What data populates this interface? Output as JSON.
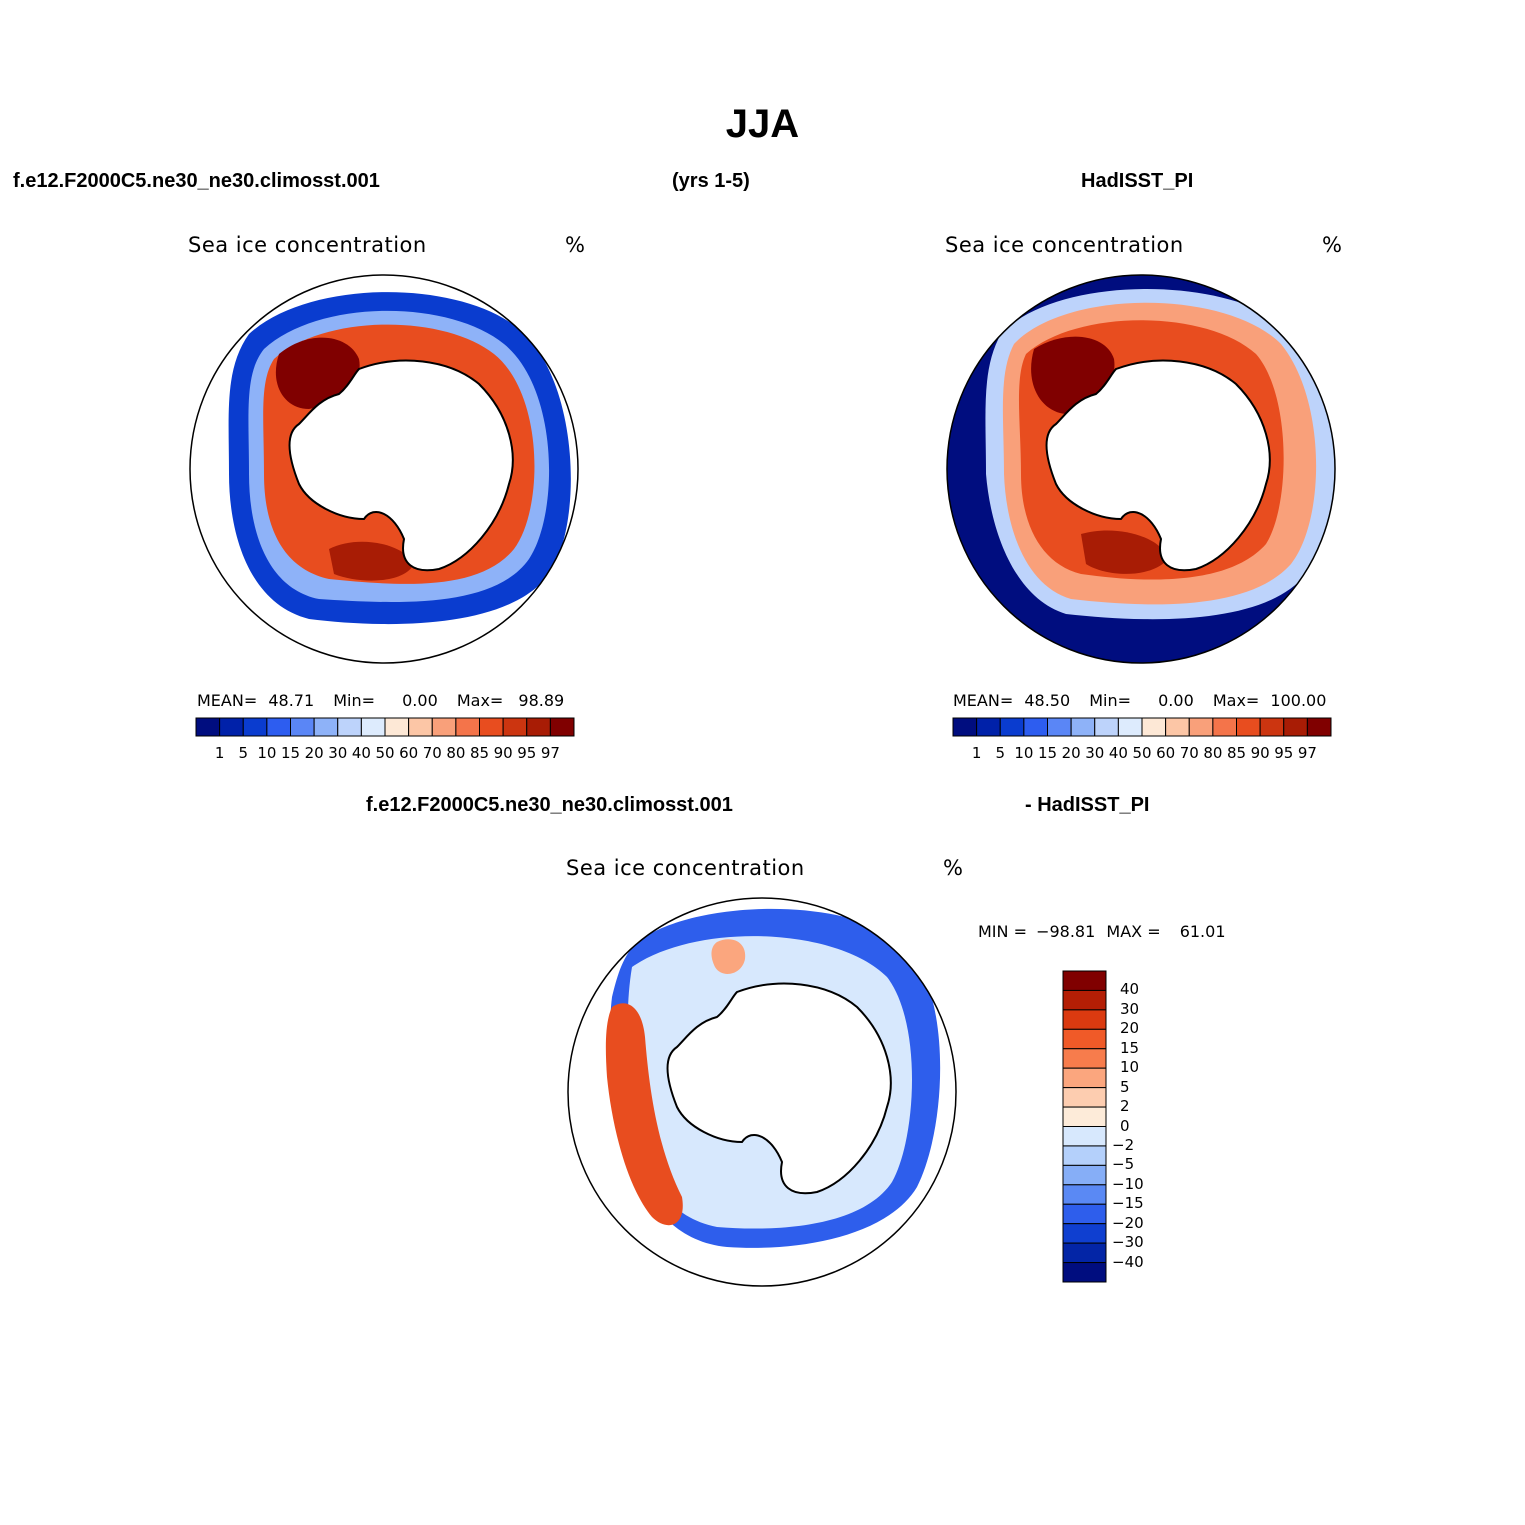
{
  "figure": {
    "season": "JJA",
    "case_name": "f.e12.F2000C5.ne30_ne30.climosst.001",
    "years": "(yrs 1-5)",
    "obs_name": "HadISST_PI",
    "diff_obs_label": "- HadISST_PI"
  },
  "panels": [
    {
      "id": "model",
      "title": "Sea ice concentration",
      "units": "%",
      "stats": {
        "mean_label": "MEAN=",
        "mean": "48.71",
        "min_label": "Min=",
        "min": "0.00",
        "max_label": "Max=",
        "max": "98.89"
      }
    },
    {
      "id": "obs",
      "title": "Sea ice concentration",
      "units": "%",
      "stats": {
        "mean_label": "MEAN=",
        "mean": "48.50",
        "min_label": "Min=",
        "min": "0.00",
        "max_label": "Max=",
        "max": "100.00"
      }
    },
    {
      "id": "diff",
      "title": "Sea ice concentration",
      "units": "%",
      "stats": {
        "min_label": "MIN =",
        "min": "−98.81",
        "max_label": "MAX =",
        "max": "61.01"
      }
    }
  ],
  "colorbars": {
    "concentration": {
      "labels": [
        "1",
        "5",
        "10",
        "15",
        "20",
        "30",
        "40",
        "50",
        "60",
        "70",
        "80",
        "85",
        "90",
        "95",
        "97"
      ],
      "colors": [
        "#000d7f",
        "#0021a9",
        "#0a3ccf",
        "#2d5df0",
        "#5a86f6",
        "#8eb2f8",
        "#bdd3fb",
        "#ddebfd",
        "#fde8d6",
        "#fcc6a6",
        "#f9a07a",
        "#f4744a",
        "#e84d1f",
        "#cc3510",
        "#a81c05",
        "#800000"
      ]
    },
    "difference": {
      "labels": [
        "40",
        "30",
        "20",
        "15",
        "10",
        "5",
        "2",
        "0",
        "−2",
        "−5",
        "−10",
        "−15",
        "−20",
        "−30",
        "−40"
      ],
      "colors": [
        "#800000",
        "#b41e05",
        "#db3a10",
        "#f05a28",
        "#f77c4c",
        "#fba67e",
        "#fdcdb0",
        "#fdebd9",
        "#d7e8fd",
        "#b4d0fb",
        "#86aef7",
        "#5a89f4",
        "#2e5eec",
        "#0f3fd0",
        "#0325a6",
        "#000d7f"
      ]
    }
  }
}
